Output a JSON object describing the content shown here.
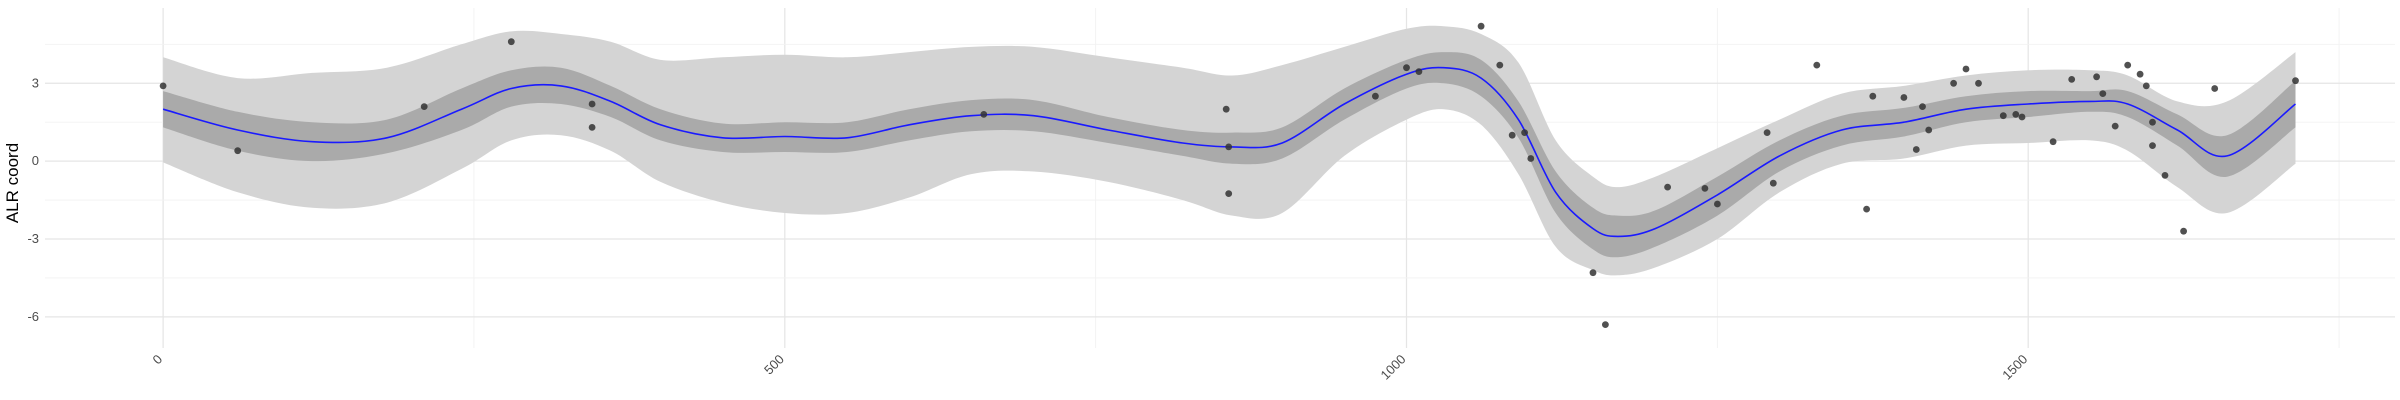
{
  "chart_data": {
    "type": "line",
    "title": "",
    "xlabel": "",
    "ylabel": "ALR coord",
    "xlim": [
      -95,
      1795
    ],
    "ylim": [
      -7.2,
      5.9
    ],
    "x_ticks": [
      0,
      500,
      1000,
      1500
    ],
    "x_tick_labels": [
      "0",
      "500",
      "1000",
      "1500"
    ],
    "y_ticks": [
      -6,
      -3,
      0,
      3
    ],
    "y_tick_labels": [
      "-6",
      "-3",
      "0",
      "3"
    ],
    "grid": true,
    "legend": "none",
    "colors": {
      "line": "#1a1aff",
      "band_inner": "#aaaaaa",
      "band_outer": "#d4d4d4",
      "points": "#333333"
    },
    "series": [
      {
        "kind": "fit",
        "x": [
          0,
          60,
          120,
          180,
          240,
          280,
          320,
          360,
          400,
          450,
          500,
          550,
          600,
          650,
          700,
          760,
          820,
          860,
          900,
          950,
          1000,
          1030,
          1060,
          1090,
          1120,
          1150,
          1170,
          1200,
          1250,
          1300,
          1350,
          1400,
          1450,
          1500,
          1550,
          1580,
          1620,
          1660,
          1715
        ],
        "y": [
          2.0,
          1.2,
          0.75,
          0.9,
          2.0,
          2.8,
          2.9,
          2.3,
          1.4,
          0.9,
          0.95,
          0.9,
          1.4,
          1.75,
          1.75,
          1.2,
          0.7,
          0.55,
          0.7,
          2.2,
          3.35,
          3.6,
          3.2,
          1.6,
          -1.2,
          -2.6,
          -2.9,
          -2.6,
          -1.3,
          0.2,
          1.2,
          1.5,
          2.0,
          2.2,
          2.3,
          2.2,
          1.2,
          0.2,
          2.2
        ]
      },
      {
        "kind": "band_inner",
        "x": [
          0,
          60,
          120,
          180,
          240,
          280,
          320,
          360,
          400,
          450,
          500,
          550,
          600,
          650,
          700,
          760,
          820,
          860,
          900,
          950,
          1000,
          1030,
          1060,
          1090,
          1120,
          1150,
          1170,
          1200,
          1250,
          1300,
          1350,
          1400,
          1450,
          1500,
          1550,
          1580,
          1620,
          1660,
          1715
        ],
        "lower": [
          1.3,
          0.4,
          0.0,
          0.3,
          1.2,
          2.1,
          2.2,
          1.7,
          0.8,
          0.35,
          0.35,
          0.35,
          0.8,
          1.15,
          1.15,
          0.7,
          0.2,
          -0.1,
          0.1,
          1.6,
          2.8,
          3.0,
          2.5,
          0.9,
          -2.0,
          -3.4,
          -3.7,
          -3.3,
          -2.1,
          -0.4,
          0.6,
          0.95,
          1.5,
          1.7,
          1.9,
          1.7,
          0.6,
          -0.6,
          1.3
        ],
        "upper": [
          2.7,
          1.9,
          1.5,
          1.6,
          2.8,
          3.5,
          3.6,
          2.9,
          2.0,
          1.45,
          1.5,
          1.5,
          2.0,
          2.35,
          2.35,
          1.7,
          1.2,
          1.1,
          1.3,
          2.8,
          3.9,
          4.2,
          3.9,
          2.3,
          -0.4,
          -1.8,
          -2.1,
          -1.9,
          -0.6,
          0.8,
          1.75,
          2.05,
          2.5,
          2.7,
          2.7,
          2.7,
          1.8,
          1.0,
          3.1
        ]
      },
      {
        "kind": "band_outer",
        "x": [
          0,
          60,
          120,
          180,
          240,
          280,
          320,
          360,
          400,
          450,
          500,
          550,
          600,
          650,
          700,
          760,
          820,
          860,
          900,
          950,
          1000,
          1030,
          1060,
          1090,
          1120,
          1150,
          1170,
          1200,
          1250,
          1300,
          1350,
          1400,
          1450,
          1500,
          1550,
          1580,
          1620,
          1660,
          1715
        ],
        "lower": [
          -0.05,
          -1.2,
          -1.8,
          -1.6,
          -0.3,
          0.8,
          1.0,
          0.4,
          -0.8,
          -1.6,
          -2.0,
          -2.0,
          -1.4,
          -0.5,
          -0.4,
          -0.8,
          -1.5,
          -2.1,
          -2.0,
          0.2,
          1.6,
          2.0,
          1.4,
          -0.5,
          -3.3,
          -4.2,
          -4.4,
          -4.1,
          -3.0,
          -1.2,
          -0.1,
          0.1,
          0.6,
          0.7,
          0.8,
          0.4,
          -1.0,
          -2.0,
          -0.1
        ],
        "upper": [
          4.0,
          3.2,
          3.4,
          3.6,
          4.5,
          5.0,
          4.9,
          4.6,
          3.9,
          4.0,
          4.1,
          4.0,
          4.2,
          4.4,
          4.4,
          4.0,
          3.6,
          3.3,
          3.7,
          4.4,
          5.1,
          5.2,
          4.9,
          3.8,
          0.8,
          -0.6,
          -1.0,
          -0.6,
          0.5,
          1.6,
          2.6,
          2.9,
          3.3,
          3.5,
          3.5,
          3.3,
          2.3,
          2.3,
          4.2
        ]
      },
      {
        "kind": "points",
        "x": [
          0,
          60,
          210,
          280,
          345,
          345,
          660,
          855,
          857,
          857,
          975,
          1000,
          1010,
          1060,
          1075,
          1085,
          1095,
          1100,
          1150,
          1160,
          1210,
          1240,
          1250,
          1290,
          1295,
          1330,
          1370,
          1375,
          1400,
          1410,
          1415,
          1420,
          1440,
          1450,
          1460,
          1480,
          1490,
          1495,
          1520,
          1535,
          1555,
          1560,
          1570,
          1580,
          1590,
          1595,
          1600,
          1600,
          1610,
          1625,
          1650,
          1715
        ],
        "y": [
          2.9,
          0.4,
          2.1,
          4.6,
          2.2,
          1.3,
          1.8,
          2.0,
          0.55,
          -1.25,
          2.5,
          3.6,
          3.45,
          5.2,
          3.7,
          1.0,
          1.1,
          0.1,
          -4.3,
          -6.3,
          -1.0,
          -1.05,
          -1.65,
          1.1,
          -0.85,
          3.7,
          -1.85,
          2.5,
          2.45,
          0.45,
          2.1,
          1.2,
          3.0,
          3.55,
          3.0,
          1.75,
          1.8,
          1.7,
          0.75,
          3.15,
          3.25,
          2.6,
          1.35,
          3.7,
          3.35,
          2.9,
          1.5,
          0.6,
          -0.55,
          -2.7,
          2.8,
          3.1
        ]
      }
    ]
  }
}
